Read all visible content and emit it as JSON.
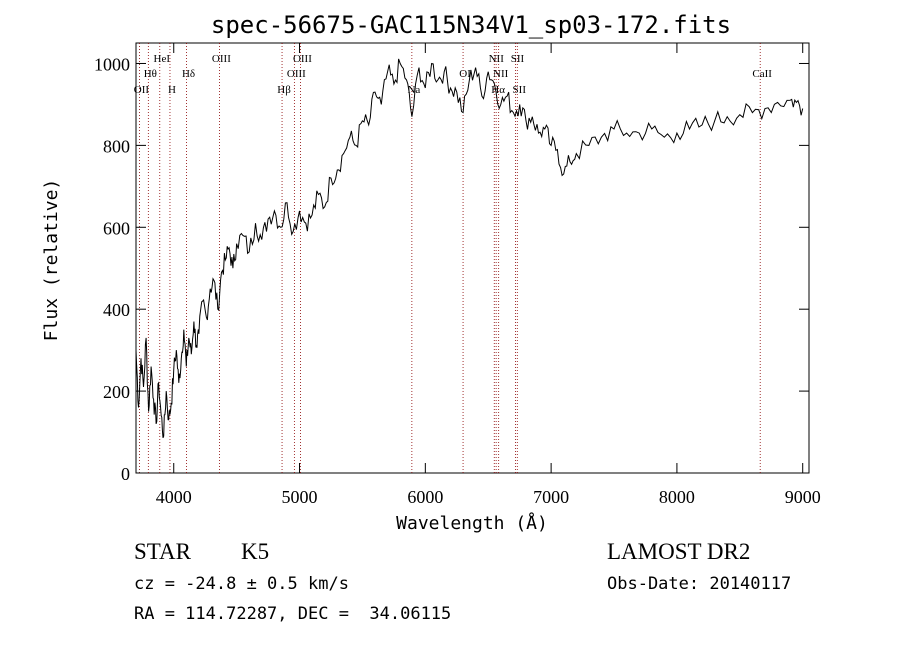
{
  "chart_data": {
    "type": "line",
    "title": "spec-56675-GAC115N34V1_sp03-172.fits",
    "xlabel": "Wavelength (Å)",
    "ylabel": "Flux (relative)",
    "xlim": [
      3700,
      9050
    ],
    "ylim": [
      0,
      1050
    ],
    "x_ticks": [
      4000,
      5000,
      6000,
      7000,
      8000,
      9000
    ],
    "y_ticks": [
      0,
      200,
      400,
      600,
      800,
      1000
    ],
    "grid": false,
    "line_color": "#000000",
    "marker_color": "#8b0000",
    "series": [
      {
        "x": [
          3700,
          3720,
          3740,
          3760,
          3780,
          3800,
          3820,
          3840,
          3860,
          3880,
          3900,
          3920,
          3940,
          3960,
          3980,
          4000,
          4020,
          4040,
          4060,
          4080,
          4100,
          4120,
          4140,
          4160,
          4180,
          4200,
          4230,
          4260,
          4290,
          4320,
          4350,
          4380,
          4410,
          4440,
          4470,
          4500,
          4550,
          4600,
          4650,
          4700,
          4750,
          4800,
          4850,
          4900,
          4950,
          5000,
          5050,
          5100,
          5150,
          5200,
          5250,
          5300,
          5350,
          5400,
          5450,
          5500,
          5550,
          5600,
          5650,
          5700,
          5750,
          5800,
          5850,
          5893,
          5950,
          6000,
          6050,
          6100,
          6150,
          6200,
          6250,
          6300,
          6350,
          6400,
          6450,
          6500,
          6550,
          6600,
          6650,
          6700,
          6750,
          6800,
          6850,
          6900,
          6950,
          7000,
          7050,
          7100,
          7150,
          7200,
          7300,
          7400,
          7500,
          7600,
          7700,
          7800,
          7900,
          8000,
          8100,
          8200,
          8300,
          8400,
          8500,
          8600,
          8700,
          8800,
          8900,
          8950,
          9000
        ],
        "y": [
          300,
          160,
          280,
          210,
          330,
          150,
          260,
          180,
          120,
          220,
          140,
          90,
          200,
          130,
          170,
          250,
          300,
          220,
          280,
          350,
          260,
          330,
          290,
          370,
          310,
          340,
          420,
          380,
          450,
          470,
          400,
          490,
          520,
          550,
          500,
          560,
          580,
          540,
          610,
          570,
          620,
          640,
          600,
          660,
          590,
          640,
          610,
          630,
          680,
          650,
          720,
          740,
          780,
          820,
          800,
          860,
          850,
          930,
          900,
          980,
          950,
          1000,
          960,
          870,
          990,
          940,
          1000,
          960,
          980,
          940,
          930,
          880,
          960,
          990,
          920,
          980,
          950,
          900,
          920,
          880,
          900,
          860,
          870,
          830,
          840,
          800,
          790,
          730,
          760,
          780,
          800,
          820,
          840,
          830,
          830,
          840,
          820,
          830,
          840,
          850,
          860,
          870,
          875,
          880,
          890,
          905,
          910,
          905,
          890
        ]
      }
    ],
    "lines": [
      {
        "label": "OII",
        "x": 3727
      },
      {
        "label": "Hθ",
        "x": 3798
      },
      {
        "label": "HeI",
        "x": 3889
      },
      {
        "label": "H",
        "x": 3970
      },
      {
        "label": "Hδ",
        "x": 4102
      },
      {
        "label": "OIII",
        "x": 4363
      },
      {
        "label": "Hβ",
        "x": 4861
      },
      {
        "label": "OIII",
        "x": 4959
      },
      {
        "label": "OIII",
        "x": 5007
      },
      {
        "label": "Na",
        "x": 5893
      },
      {
        "label": "OI",
        "x": 6300
      },
      {
        "label": "NII",
        "x": 6548
      },
      {
        "label": "Hα",
        "x": 6563
      },
      {
        "label": "NII",
        "x": 6583
      },
      {
        "label": "SII",
        "x": 6717
      },
      {
        "label": "SII",
        "x": 6731
      },
      {
        "label": "CaII",
        "x": 8662
      }
    ]
  },
  "info": {
    "class": "STAR",
    "subclass": "K5",
    "cz": "cz = -24.8 ± 0.5 km/s",
    "radec": "RA = 114.72287, DEC =  34.06115",
    "survey": "LAMOST DR2",
    "obsdate": "Obs-Date: 20140117"
  }
}
